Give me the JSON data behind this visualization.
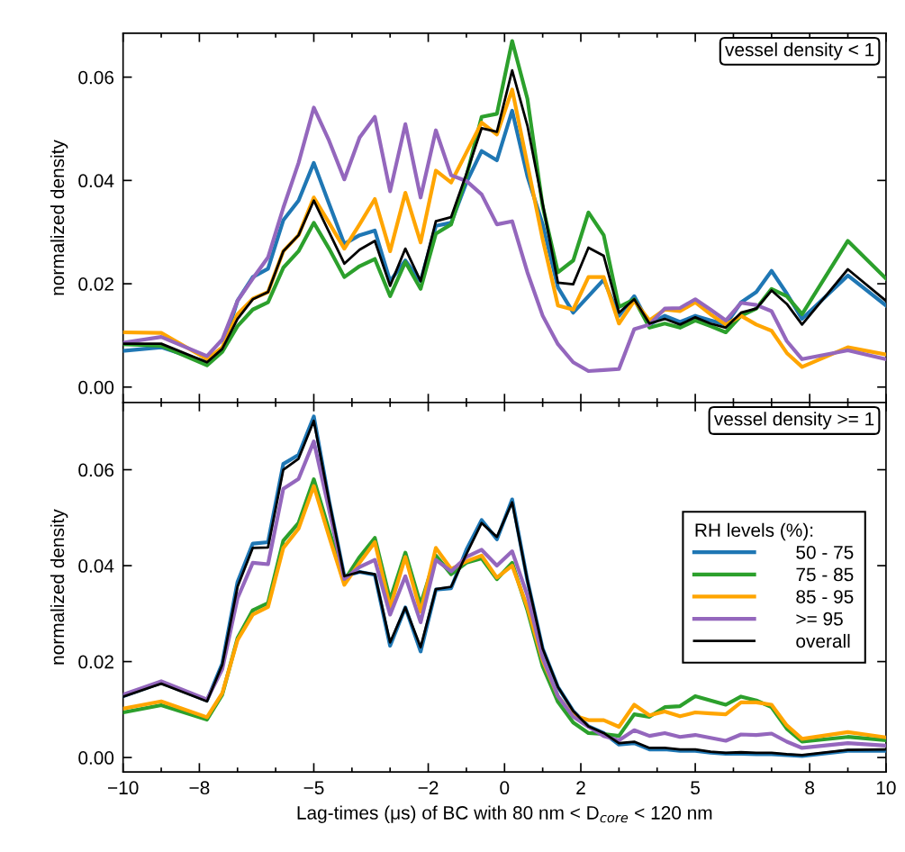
{
  "chart_data": [
    {
      "type": "line",
      "ylabel": "normalized density",
      "annotations": [
        "vessel density < 1"
      ],
      "x": [
        -10,
        -9,
        -7.8,
        -7.4,
        -7.0,
        -6.6,
        -6.2,
        -5.8,
        -5.4,
        -5.0,
        -4.6,
        -4.2,
        -3.8,
        -3.4,
        -3.0,
        -2.6,
        -2.2,
        -1.8,
        -1.4,
        -1.0,
        -0.6,
        -0.2,
        0.2,
        0.6,
        1.0,
        1.4,
        1.8,
        2.2,
        2.6,
        3.0,
        3.4,
        3.8,
        4.2,
        4.6,
        5.0,
        5.4,
        5.8,
        6.2,
        6.6,
        7.0,
        7.4,
        7.8,
        9,
        10
      ],
      "xlim": [
        -10,
        10
      ],
      "xticks": [
        -10,
        {
          "value": -9,
          "label": null
        },
        -8,
        {
          "value": -7,
          "label": null
        },
        {
          "value": -6,
          "label": null
        },
        -5,
        {
          "value": -4,
          "label": null
        },
        {
          "value": -3,
          "label": null
        },
        -2,
        {
          "value": -1,
          "label": null
        },
        0,
        {
          "value": 1,
          "label": null
        },
        2,
        {
          "value": 3,
          "label": null
        },
        {
          "value": 4,
          "label": null
        },
        5,
        {
          "value": 6,
          "label": null
        },
        {
          "value": 7,
          "label": null
        },
        8,
        {
          "value": 9,
          "label": null
        },
        10
      ],
      "ylim": [
        -0.003,
        0.0685
      ],
      "yticks": [
        {
          "value": 0,
          "label": "0.00"
        },
        {
          "value": 0.02,
          "label": "0.02"
        },
        {
          "value": 0.04,
          "label": "0.04"
        },
        {
          "value": 0.06,
          "label": "0.06"
        }
      ],
      "tick_labels": "y",
      "grid": false,
      "legend": false,
      "marker": "none",
      "line_style": "solid",
      "series": [
        {
          "color": "#1f77b4",
          "values": [
            0.007,
            0.0077,
            0.0048,
            0.0074,
            0.0167,
            0.0213,
            0.0229,
            0.0323,
            0.0361,
            0.0434,
            0.0355,
            0.0277,
            0.0294,
            0.0303,
            0.0205,
            0.0245,
            0.0205,
            0.0312,
            0.0318,
            0.0396,
            0.0457,
            0.0439,
            0.0535,
            0.0408,
            0.0315,
            0.0193,
            0.0144,
            0.0176,
            0.0208,
            0.0138,
            0.0176,
            0.0121,
            0.0138,
            0.0126,
            0.0138,
            0.0129,
            0.0121,
            0.0164,
            0.0184,
            0.0225,
            0.0181,
            0.0132,
            0.0216,
            0.0158
          ]
        },
        {
          "color": "#2ca02c",
          "values": [
            0.0083,
            0.008,
            0.0042,
            0.0068,
            0.0118,
            0.015,
            0.0164,
            0.0231,
            0.0263,
            0.0318,
            0.0268,
            0.0213,
            0.0234,
            0.0248,
            0.0176,
            0.0242,
            0.019,
            0.0297,
            0.0315,
            0.0408,
            0.0523,
            0.0529,
            0.067,
            0.0558,
            0.035,
            0.0222,
            0.0245,
            0.0338,
            0.0294,
            0.0155,
            0.017,
            0.0115,
            0.0123,
            0.0115,
            0.0129,
            0.0118,
            0.0106,
            0.0138,
            0.0152,
            0.019,
            0.0176,
            0.0141,
            0.0283,
            0.021
          ]
        },
        {
          "color": "#ffa500",
          "values": [
            0.0106,
            0.0105,
            0.0054,
            0.0077,
            0.0141,
            0.0171,
            0.0184,
            0.0263,
            0.0294,
            0.0367,
            0.0318,
            0.0268,
            0.0315,
            0.0364,
            0.0263,
            0.0376,
            0.028,
            0.0419,
            0.0396,
            0.0454,
            0.0512,
            0.0489,
            0.0576,
            0.0431,
            0.0286,
            0.0158,
            0.015,
            0.0213,
            0.0213,
            0.0123,
            0.0167,
            0.0129,
            0.015,
            0.0147,
            0.0164,
            0.0141,
            0.0121,
            0.0138,
            0.0121,
            0.0109,
            0.0066,
            0.0039,
            0.0077,
            0.0063
          ]
        },
        {
          "color": "#9467bd",
          "values": [
            0.0086,
            0.0097,
            0.006,
            0.0092,
            0.0167,
            0.021,
            0.0251,
            0.0347,
            0.0434,
            0.0541,
            0.0477,
            0.0402,
            0.0483,
            0.0523,
            0.0379,
            0.0509,
            0.0367,
            0.0497,
            0.041,
            0.0399,
            0.0373,
            0.0315,
            0.0321,
            0.0222,
            0.0138,
            0.0083,
            0.0048,
            0.0031,
            0.0033,
            0.0035,
            0.0112,
            0.0121,
            0.0152,
            0.0153,
            0.017,
            0.015,
            0.0129,
            0.0163,
            0.0159,
            0.0147,
            0.0089,
            0.0054,
            0.0071,
            0.0054
          ]
        },
        {
          "color": "#000000",
          "values": [
            0.0084,
            0.0084,
            0.0048,
            0.0074,
            0.0132,
            0.017,
            0.0184,
            0.0263,
            0.0294,
            0.0361,
            0.03,
            0.0239,
            0.0266,
            0.0283,
            0.0196,
            0.0268,
            0.0205,
            0.0321,
            0.0329,
            0.0413,
            0.0501,
            0.0494,
            0.0613,
            0.0506,
            0.0355,
            0.0202,
            0.0199,
            0.027,
            0.0254,
            0.0144,
            0.017,
            0.0123,
            0.0132,
            0.0121,
            0.0135,
            0.0123,
            0.0115,
            0.0144,
            0.0152,
            0.0187,
            0.0161,
            0.0121,
            0.0228,
            0.0167
          ]
        }
      ]
    },
    {
      "type": "line",
      "ylabel": "normalized density",
      "xlabel": "Lag-times (μs) of BC with 80 nm < D$_{core}$ < 120 nm",
      "annotations": [
        "vessel density >= 1"
      ],
      "legend_title": "RH levels (%):",
      "x": [
        -10,
        -9,
        -7.8,
        -7.4,
        -7.0,
        -6.6,
        -6.2,
        -5.8,
        -5.4,
        -5.0,
        -4.6,
        -4.2,
        -3.8,
        -3.4,
        -3.0,
        -2.6,
        -2.2,
        -1.8,
        -1.4,
        -1.0,
        -0.6,
        -0.2,
        0.2,
        0.6,
        1.0,
        1.4,
        1.8,
        2.2,
        2.6,
        3.0,
        3.4,
        3.8,
        4.2,
        4.6,
        5.0,
        5.4,
        5.8,
        6.2,
        6.6,
        7.0,
        7.4,
        7.8,
        9,
        10
      ],
      "xlim": [
        -10,
        10
      ],
      "xticks": [
        {
          "value": -10,
          "label": "−10"
        },
        {
          "value": -9,
          "label": null
        },
        {
          "value": -8,
          "label": "−8"
        },
        {
          "value": -7,
          "label": null
        },
        {
          "value": -6,
          "label": null
        },
        {
          "value": -5,
          "label": "−5"
        },
        {
          "value": -4,
          "label": null
        },
        {
          "value": -3,
          "label": null
        },
        {
          "value": -2,
          "label": "−2"
        },
        {
          "value": -1,
          "label": null
        },
        0,
        {
          "value": 1,
          "label": null
        },
        2,
        {
          "value": 3,
          "label": null
        },
        {
          "value": 4,
          "label": null
        },
        5,
        {
          "value": 6,
          "label": null
        },
        {
          "value": 7,
          "label": null
        },
        8,
        {
          "value": 9,
          "label": null
        },
        10
      ],
      "ylim": [
        -0.003,
        0.074
      ],
      "yticks": [
        {
          "value": 0,
          "label": "0.00"
        },
        {
          "value": 0.02,
          "label": "0.02"
        },
        {
          "value": 0.04,
          "label": "0.04"
        },
        {
          "value": 0.06,
          "label": "0.06"
        }
      ],
      "grid": false,
      "legend": "right",
      "marker": "none",
      "line_style": "solid",
      "series": [
        {
          "name": "50 - 75",
          "color": "#1f77b4",
          "values": [
            0.0128,
            0.0156,
            0.0119,
            0.0196,
            0.0366,
            0.0446,
            0.0449,
            0.0612,
            0.0631,
            0.0711,
            0.0535,
            0.0378,
            0.0387,
            0.0381,
            0.0233,
            0.0313,
            0.0221,
            0.035,
            0.0353,
            0.0433,
            0.0495,
            0.0455,
            0.0538,
            0.0369,
            0.0227,
            0.0147,
            0.0097,
            0.0065,
            0.0051,
            0.0027,
            0.003,
            0.0017,
            0.0017,
            0.0014,
            0.0014,
            0.001,
            0.0008,
            0.0008,
            0.0007,
            0.0007,
            0.0005,
            0.0003,
            0.0014,
            0.0014
          ]
        },
        {
          "name": "75 - 85",
          "color": "#2ca02c",
          "values": [
            0.0094,
            0.0109,
            0.0079,
            0.0131,
            0.0249,
            0.0307,
            0.0322,
            0.0452,
            0.0489,
            0.058,
            0.0474,
            0.0369,
            0.0418,
            0.0458,
            0.0329,
            0.0427,
            0.0319,
            0.0421,
            0.0382,
            0.0406,
            0.0415,
            0.0372,
            0.0406,
            0.0307,
            0.019,
            0.0116,
            0.0073,
            0.0051,
            0.0049,
            0.0045,
            0.009,
            0.0085,
            0.0105,
            0.0107,
            0.0128,
            0.0119,
            0.011,
            0.0127,
            0.0119,
            0.0105,
            0.006,
            0.0033,
            0.0043,
            0.0036
          ]
        },
        {
          "name": "85 - 95",
          "color": "#ffa500",
          "values": [
            0.0102,
            0.0117,
            0.0084,
            0.0134,
            0.0245,
            0.0298,
            0.0314,
            0.0437,
            0.0477,
            0.0566,
            0.0461,
            0.036,
            0.0406,
            0.0449,
            0.0313,
            0.0418,
            0.0304,
            0.0437,
            0.0393,
            0.0409,
            0.0421,
            0.0375,
            0.04,
            0.0313,
            0.0202,
            0.0128,
            0.0088,
            0.0078,
            0.0078,
            0.0064,
            0.011,
            0.0088,
            0.0096,
            0.0086,
            0.0094,
            0.0092,
            0.009,
            0.0115,
            0.0115,
            0.011,
            0.0067,
            0.0039,
            0.0053,
            0.0042
          ]
        },
        {
          "name": ">= 95",
          "color": "#9467bd",
          "values": [
            0.0131,
            0.0159,
            0.0121,
            0.0184,
            0.0332,
            0.0406,
            0.0403,
            0.056,
            0.0581,
            0.0659,
            0.0517,
            0.0372,
            0.0397,
            0.0412,
            0.0298,
            0.0378,
            0.0282,
            0.0412,
            0.0388,
            0.0418,
            0.0433,
            0.04,
            0.043,
            0.0338,
            0.0208,
            0.0128,
            0.0085,
            0.0064,
            0.0045,
            0.0036,
            0.0057,
            0.0045,
            0.0051,
            0.0043,
            0.0047,
            0.0041,
            0.0035,
            0.0048,
            0.0047,
            0.005,
            0.0033,
            0.002,
            0.003,
            0.0025
          ]
        },
        {
          "name": "overall",
          "color": "#000000",
          "values": [
            0.0127,
            0.0154,
            0.0117,
            0.0193,
            0.0356,
            0.0437,
            0.0438,
            0.06,
            0.0623,
            0.0702,
            0.0535,
            0.0378,
            0.0387,
            0.0382,
            0.024,
            0.0313,
            0.023,
            0.0351,
            0.0356,
            0.0424,
            0.0489,
            0.046,
            0.0532,
            0.0369,
            0.0227,
            0.0147,
            0.0097,
            0.0065,
            0.0051,
            0.003,
            0.0033,
            0.002,
            0.002,
            0.0017,
            0.0017,
            0.0012,
            0.001,
            0.0011,
            0.001,
            0.001,
            0.0007,
            0.0005,
            0.0016,
            0.0017
          ]
        }
      ]
    }
  ]
}
